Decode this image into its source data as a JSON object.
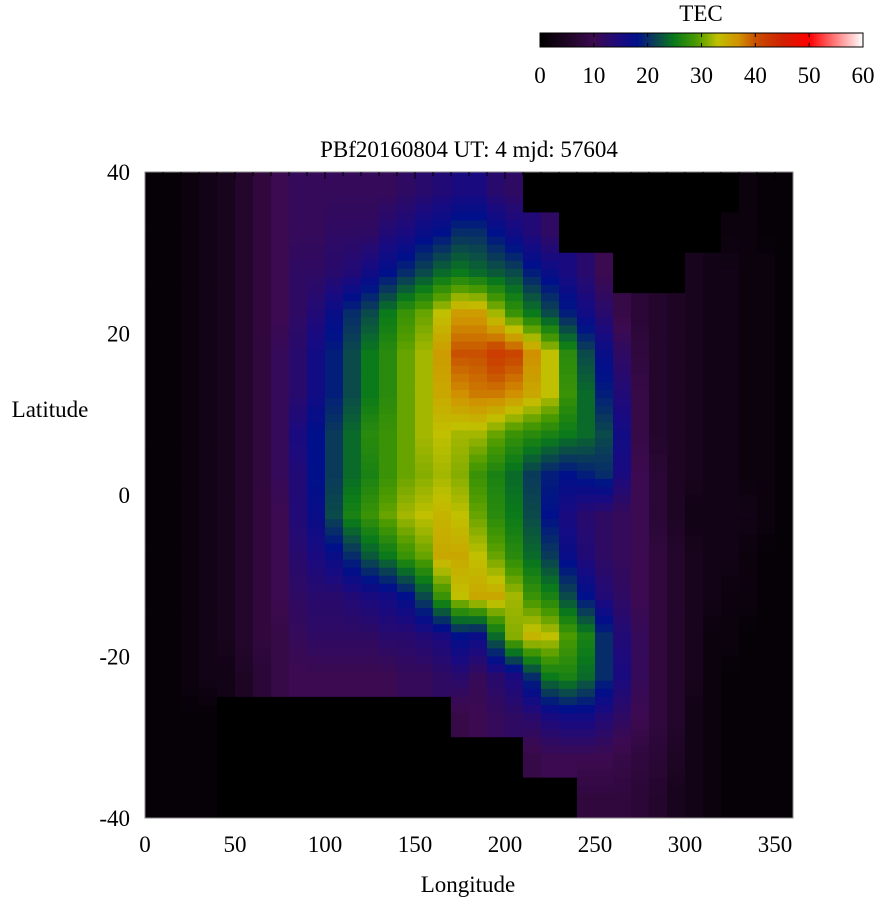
{
  "chart_data": {
    "type": "heatmap",
    "title": "PBf20160804  UT: 4  mjd: 57604",
    "xlabel": "Longitude",
    "ylabel": "Latitude",
    "xlim": [
      0,
      360
    ],
    "ylim": [
      -40,
      40
    ],
    "x_ticks": [
      "0",
      "50",
      "100",
      "150",
      "200",
      "250",
      "300",
      "350"
    ],
    "y_ticks": [
      "40",
      "20",
      "0",
      "-20",
      "-40"
    ],
    "x_cell_size_deg": 10,
    "y_cell_size_deg": 5,
    "rows_lat_from": 40,
    "colorbar": {
      "label": "TEC",
      "range": [
        0,
        60
      ],
      "ticks": [
        "0",
        "10",
        "20",
        "30",
        "40",
        "50",
        "60"
      ],
      "stops": [
        [
          0,
          "#000000"
        ],
        [
          5,
          "#1e0524"
        ],
        [
          10,
          "#3c0a50"
        ],
        [
          15,
          "#1a0a80"
        ],
        [
          18,
          "#00108a"
        ],
        [
          21,
          "#0a3a5a"
        ],
        [
          25,
          "#0a7a1a"
        ],
        [
          29,
          "#4a9a00"
        ],
        [
          33,
          "#c0c000"
        ],
        [
          37,
          "#d09000"
        ],
        [
          40,
          "#c85000"
        ],
        [
          45,
          "#d02000"
        ],
        [
          50,
          "#ff0000"
        ],
        [
          55,
          "#ff8080"
        ],
        [
          60,
          "#ffffff"
        ]
      ]
    },
    "values": [
      [
        1,
        1,
        2,
        3,
        4,
        6,
        8,
        10,
        11,
        11,
        11,
        11,
        11,
        11,
        12,
        13,
        14,
        15,
        15,
        13,
        12,
        0,
        0,
        0,
        0,
        0,
        0,
        0,
        0,
        0,
        0,
        0,
        0,
        2,
        1,
        1
      ],
      [
        1,
        1,
        2,
        3,
        4,
        6,
        8,
        10,
        11,
        11,
        12,
        12,
        12,
        14,
        15,
        17,
        18,
        20,
        20,
        18,
        16,
        14,
        12,
        0,
        0,
        0,
        0,
        0,
        0,
        0,
        0,
        0,
        2,
        2,
        1,
        1
      ],
      [
        1,
        1,
        2,
        3,
        4,
        6,
        8,
        10,
        12,
        12,
        13,
        14,
        16,
        18,
        20,
        22,
        24,
        25,
        24,
        23,
        22,
        19,
        17,
        15,
        13,
        10,
        0,
        0,
        0,
        0,
        4,
        3,
        3,
        2,
        2,
        1
      ],
      [
        1,
        1,
        2,
        3,
        4,
        6,
        8,
        10,
        12,
        14,
        17,
        20,
        22,
        25,
        28,
        30,
        33,
        36,
        36,
        32,
        28,
        25,
        22,
        19,
        16,
        13,
        9,
        7,
        6,
        5,
        4,
        3,
        3,
        2,
        2,
        1
      ],
      [
        1,
        1,
        2,
        3,
        4,
        6,
        8,
        11,
        13,
        16,
        19,
        22,
        25,
        27,
        30,
        32,
        36,
        40,
        40,
        42,
        41,
        37,
        33,
        27,
        22,
        17,
        12,
        8,
        6,
        5,
        4,
        3,
        3,
        2,
        2,
        1
      ],
      [
        1,
        1,
        2,
        3,
        4,
        6,
        8,
        11,
        13,
        16,
        19,
        22,
        25,
        27,
        30,
        32,
        35,
        37,
        38,
        38,
        37,
        35,
        33,
        28,
        24,
        19,
        14,
        9,
        6,
        5,
        4,
        3,
        3,
        2,
        2,
        1
      ],
      [
        1,
        1,
        2,
        3,
        4,
        6,
        8,
        11,
        15,
        18,
        21,
        24,
        27,
        28,
        30,
        32,
        33,
        32,
        32,
        30,
        28,
        27,
        26,
        25,
        24,
        22,
        16,
        9,
        6,
        5,
        4,
        3,
        3,
        2,
        2,
        1
      ],
      [
        1,
        1,
        2,
        3,
        4,
        6,
        8,
        11,
        14,
        18,
        21,
        24,
        26,
        28,
        30,
        31,
        32,
        31,
        28,
        26,
        24,
        21,
        19,
        18,
        19,
        20,
        15,
        10,
        7,
        5,
        4,
        3,
        3,
        2,
        2,
        1
      ],
      [
        1,
        1,
        2,
        3,
        4,
        6,
        8,
        10,
        14,
        17,
        22,
        26,
        28,
        30,
        32,
        33,
        34,
        33,
        30,
        27,
        25,
        22,
        18,
        15,
        13,
        12,
        11,
        10,
        7,
        5,
        3,
        3,
        3,
        3,
        2,
        1
      ],
      [
        1,
        1,
        2,
        3,
        4,
        6,
        8,
        10,
        13,
        15,
        17,
        20,
        23,
        25,
        28,
        30,
        35,
        35,
        33,
        30,
        27,
        24,
        21,
        17,
        14,
        12,
        11,
        10,
        8,
        6,
        4,
        3,
        3,
        2,
        1,
        1
      ],
      [
        1,
        1,
        2,
        3,
        4,
        6,
        8,
        10,
        12,
        13,
        13,
        14,
        15,
        16,
        18,
        22,
        28,
        33,
        35,
        35,
        32,
        28,
        26,
        22,
        18,
        14,
        12,
        10,
        8,
        6,
        4,
        3,
        2,
        2,
        1,
        1
      ],
      [
        1,
        1,
        2,
        3,
        4,
        6,
        8,
        9,
        11,
        12,
        12,
        12,
        12,
        13,
        13,
        14,
        15,
        18,
        17,
        24,
        31,
        34,
        33,
        29,
        26,
        20,
        14,
        11,
        8,
        6,
        4,
        2,
        2,
        1,
        1,
        1
      ],
      [
        1,
        1,
        2,
        3,
        3,
        5,
        7,
        9,
        10,
        10,
        10,
        10,
        10,
        10,
        11,
        11,
        12,
        13,
        11,
        13,
        15,
        20,
        25,
        26,
        24,
        20,
        15,
        11,
        8,
        6,
        4,
        2,
        1,
        1,
        1,
        1
      ],
      [
        1,
        1,
        1,
        1,
        0,
        0,
        0,
        0,
        0,
        0,
        0,
        0,
        0,
        0,
        0,
        0,
        0,
        9,
        10,
        11,
        12,
        13,
        15,
        16,
        16,
        14,
        12,
        10,
        8,
        6,
        3,
        2,
        1,
        1,
        1,
        1
      ],
      [
        1,
        1,
        1,
        1,
        0,
        0,
        0,
        0,
        0,
        0,
        0,
        0,
        0,
        0,
        0,
        0,
        0,
        0,
        0,
        0,
        0,
        9,
        10,
        10,
        10,
        10,
        9,
        8,
        7,
        5,
        3,
        2,
        1,
        1,
        1,
        1
      ],
      [
        1,
        1,
        1,
        1,
        0,
        0,
        0,
        0,
        0,
        0,
        0,
        0,
        0,
        0,
        0,
        0,
        0,
        0,
        0,
        0,
        0,
        0,
        0,
        0,
        8,
        8,
        8,
        7,
        6,
        4,
        3,
        2,
        1,
        1,
        1,
        1
      ]
    ]
  }
}
